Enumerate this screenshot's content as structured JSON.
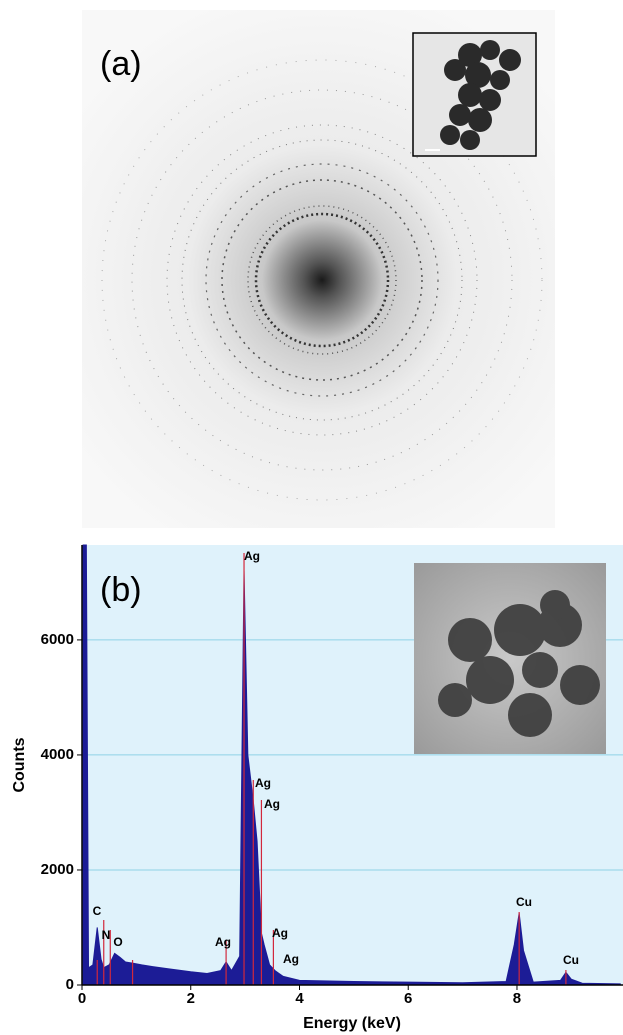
{
  "panel_a": {
    "label": "(a)"
  },
  "chart_data": {
    "type": "area",
    "panel_label": "(b)",
    "xlabel": "Energy (keV)",
    "ylabel": "Counts",
    "x": [
      0.02,
      0.08,
      0.12,
      0.2,
      0.28,
      0.35,
      0.4,
      0.5,
      0.6,
      0.7,
      0.8,
      0.93,
      1.1,
      1.3,
      1.6,
      2.0,
      2.3,
      2.55,
      2.65,
      2.75,
      2.9,
      2.98,
      3.05,
      3.15,
      3.22,
      3.3,
      3.35,
      3.45,
      3.55,
      3.7,
      4.0,
      5.0,
      6.0,
      7.0,
      7.8,
      7.95,
      8.04,
      8.12,
      8.3,
      8.8,
      8.9,
      9.0,
      9.2,
      9.9
    ],
    "values": [
      7650,
      7650,
      300,
      350,
      1000,
      450,
      300,
      350,
      550,
      480,
      400,
      380,
      350,
      320,
      280,
      230,
      200,
      250,
      400,
      250,
      500,
      7200,
      4000,
      3200,
      2500,
      900,
      700,
      350,
      250,
      150,
      80,
      60,
      50,
      40,
      60,
      700,
      1250,
      600,
      50,
      80,
      220,
      100,
      30,
      20
    ],
    "color": "#1c1c96",
    "xlim": [
      0,
      9.95
    ],
    "ylim": [
      0,
      7650
    ],
    "xticks": [
      0,
      2,
      4,
      6,
      8
    ],
    "yticks": [
      0,
      2000,
      4000,
      6000
    ],
    "grid": true,
    "annotations": [
      "C",
      "N",
      "O",
      "Ag",
      "Ag",
      "Ag",
      "Ag",
      "Ag",
      "Ag",
      "Cu",
      "Cu"
    ]
  }
}
